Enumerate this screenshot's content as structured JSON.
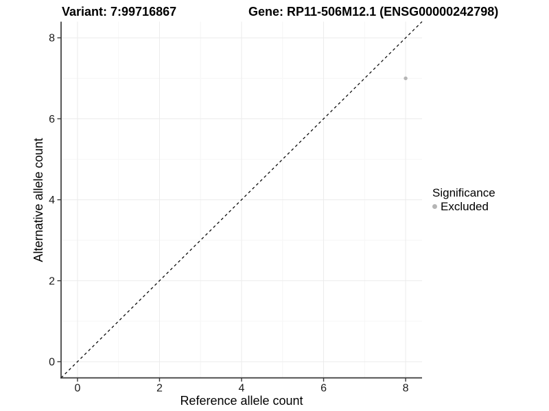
{
  "titles": {
    "variant": "Variant: 7:99716867",
    "gene": "Gene: RP11-506M12.1 (ENSG00000242798)"
  },
  "chart_data": {
    "type": "scatter",
    "xlabel": "Reference allele count",
    "ylabel": "Alternative allele count",
    "x_ticks": [
      0,
      2,
      4,
      6,
      8
    ],
    "y_ticks": [
      0,
      2,
      4,
      6,
      8
    ],
    "x_minor": [
      1,
      3,
      5,
      7
    ],
    "y_minor": [
      1,
      3,
      5,
      7
    ],
    "xlim": [
      -0.4,
      8.4
    ],
    "ylim": [
      -0.4,
      8.4
    ],
    "grid": true,
    "points": [
      {
        "x": 8,
        "y": 7,
        "significance": "Excluded"
      }
    ],
    "identity_line": {
      "type": "abline",
      "slope": 1,
      "intercept": 0,
      "style": "dashed"
    },
    "legend": {
      "position": "right",
      "title": "Significance",
      "items": [
        {
          "label": "Excluded",
          "color": "#b5b5b5"
        }
      ]
    }
  },
  "colors": {
    "point": "#b5b5b5",
    "grid_major": "#ebebeb",
    "grid_minor": "#f6f6f6",
    "axis_line": "#383838",
    "tick_mark": "#383838",
    "tick_text": "#1a1a1a",
    "identity_line": "#0a0a0a"
  }
}
